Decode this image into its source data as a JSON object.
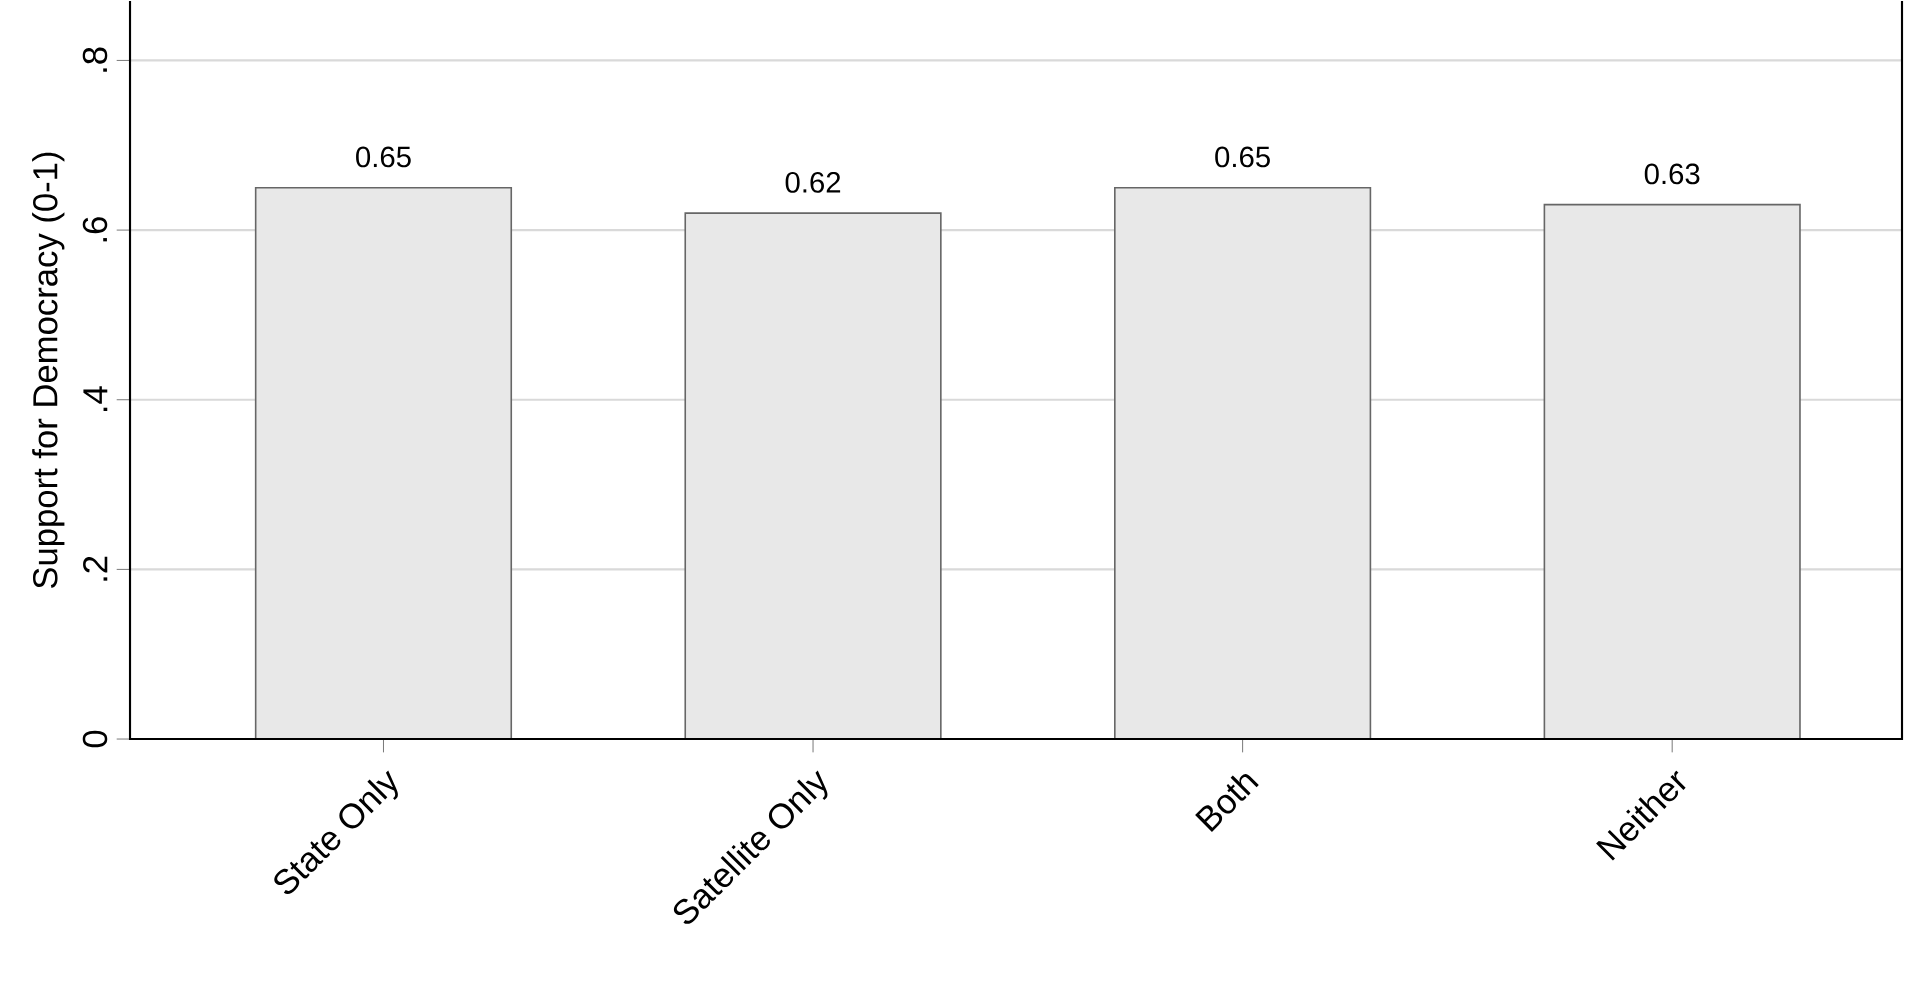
{
  "chart_data": {
    "type": "bar",
    "ylabel": "Support for Democracy (0-1)",
    "categories": [
      "State Only",
      "Satellite Only",
      "Both",
      "Neither"
    ],
    "values": [
      0.65,
      0.62,
      0.65,
      0.63
    ],
    "color": "#e8e8e8",
    "data_labels": true,
    "ylim": [
      0,
      0.87
    ],
    "yticks": [
      0,
      {
        "value": 0.2,
        "label": ".2"
      },
      {
        "value": 0.4,
        "label": ".4"
      },
      {
        "value": 0.6,
        "label": ".6"
      },
      {
        "value": 0.8,
        "label": ".8"
      }
    ],
    "grid": "y"
  }
}
